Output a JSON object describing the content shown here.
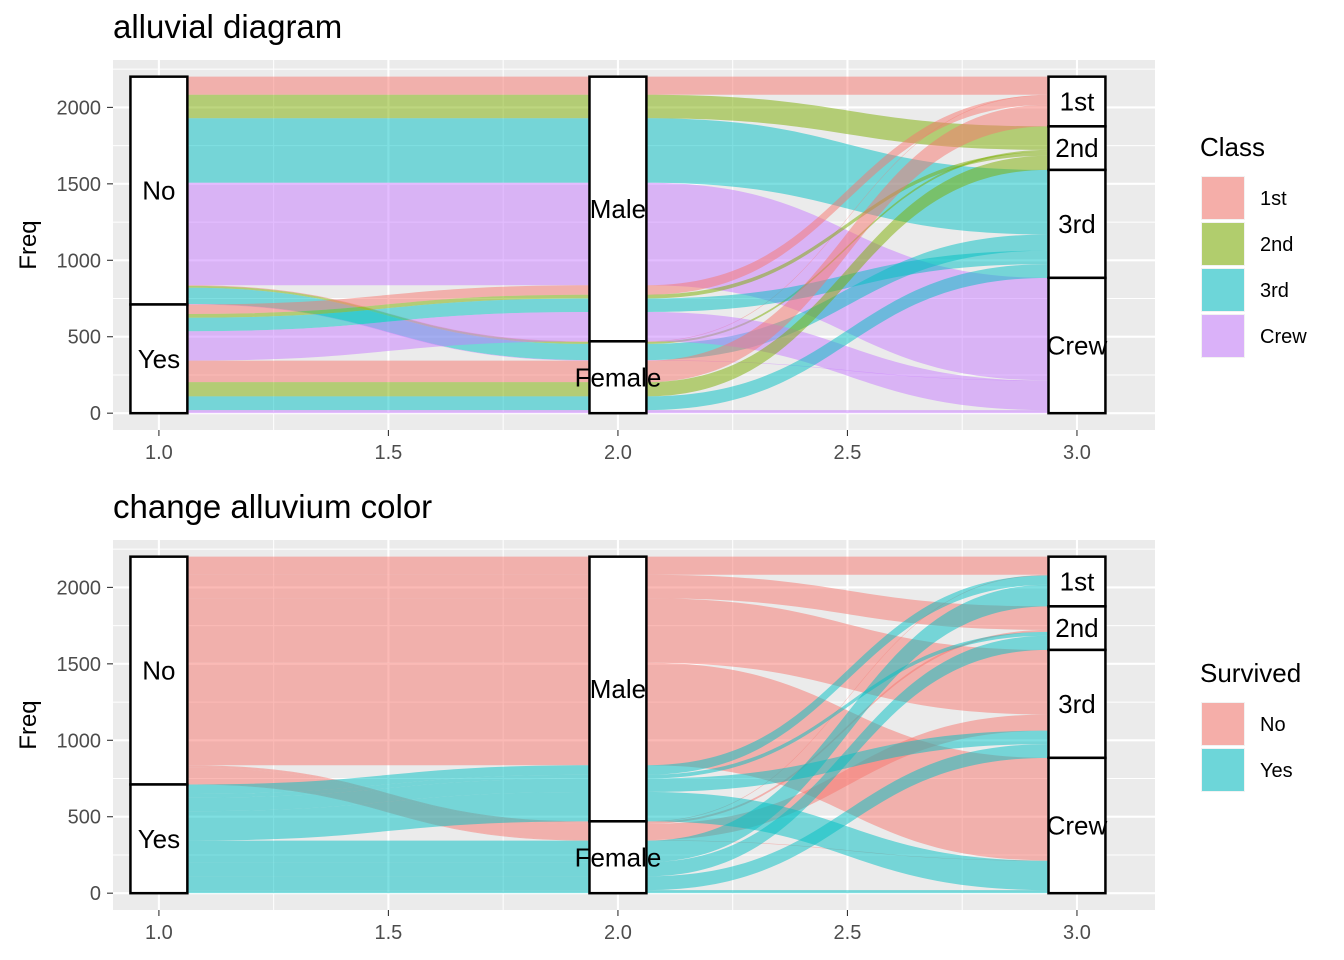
{
  "chart_data": [
    {
      "type": "alluvial",
      "title": "alluvial diagram",
      "xlabel": "",
      "ylabel": "Freq",
      "xlim": [
        0.9,
        3.17
      ],
      "ylim": [
        -110,
        2310
      ],
      "x_ticks": [
        1.0,
        1.5,
        2.0,
        2.5,
        3.0
      ],
      "x_tick_labels": [
        "1.0",
        "1.5",
        "2.0",
        "2.5",
        "3.0"
      ],
      "y_ticks": [
        0,
        500,
        1000,
        1500,
        2000
      ],
      "y_tick_labels": [
        "0",
        "500",
        "1000",
        "1500",
        "2000"
      ],
      "grid": true,
      "fill_by": "Class",
      "legend": {
        "title": "Class",
        "position": "right",
        "entries": [
          {
            "label": "1st",
            "color": "#F8766D"
          },
          {
            "label": "2nd",
            "color": "#7CAE00"
          },
          {
            "label": "3rd",
            "color": "#00BFC4"
          },
          {
            "label": "Crew",
            "color": "#C77CFF"
          }
        ]
      },
      "axes": [
        {
          "x": 1,
          "strata": [
            {
              "label": "No",
              "value": 1490
            },
            {
              "label": "Yes",
              "value": 711
            }
          ]
        },
        {
          "x": 2,
          "strata": [
            {
              "label": "Male",
              "value": 1731
            },
            {
              "label": "Female",
              "value": 470
            }
          ]
        },
        {
          "x": 3,
          "strata": [
            {
              "label": "1st",
              "value": 325
            },
            {
              "label": "2nd",
              "value": 285
            },
            {
              "label": "3rd",
              "value": 706
            },
            {
              "label": "Crew",
              "value": 885
            }
          ]
        }
      ],
      "flows": [
        {
          "survived": "No",
          "sex": "Male",
          "class": "1st",
          "freq": 118
        },
        {
          "survived": "No",
          "sex": "Male",
          "class": "2nd",
          "freq": 154
        },
        {
          "survived": "No",
          "sex": "Male",
          "class": "3rd",
          "freq": 422
        },
        {
          "survived": "No",
          "sex": "Male",
          "class": "Crew",
          "freq": 670
        },
        {
          "survived": "No",
          "sex": "Female",
          "class": "1st",
          "freq": 4
        },
        {
          "survived": "No",
          "sex": "Female",
          "class": "2nd",
          "freq": 13
        },
        {
          "survived": "No",
          "sex": "Female",
          "class": "3rd",
          "freq": 106
        },
        {
          "survived": "No",
          "sex": "Female",
          "class": "Crew",
          "freq": 3
        },
        {
          "survived": "Yes",
          "sex": "Male",
          "class": "1st",
          "freq": 62
        },
        {
          "survived": "Yes",
          "sex": "Male",
          "class": "2nd",
          "freq": 25
        },
        {
          "survived": "Yes",
          "sex": "Male",
          "class": "3rd",
          "freq": 88
        },
        {
          "survived": "Yes",
          "sex": "Male",
          "class": "Crew",
          "freq": 192
        },
        {
          "survived": "Yes",
          "sex": "Female",
          "class": "1st",
          "freq": 141
        },
        {
          "survived": "Yes",
          "sex": "Female",
          "class": "2nd",
          "freq": 93
        },
        {
          "survived": "Yes",
          "sex": "Female",
          "class": "3rd",
          "freq": 90
        },
        {
          "survived": "Yes",
          "sex": "Female",
          "class": "Crew",
          "freq": 20
        }
      ]
    },
    {
      "type": "alluvial",
      "title": "change alluvium color",
      "xlabel": "",
      "ylabel": "Freq",
      "xlim": [
        0.9,
        3.17
      ],
      "ylim": [
        -110,
        2310
      ],
      "x_ticks": [
        1.0,
        1.5,
        2.0,
        2.5,
        3.0
      ],
      "x_tick_labels": [
        "1.0",
        "1.5",
        "2.0",
        "2.5",
        "3.0"
      ],
      "y_ticks": [
        0,
        500,
        1000,
        1500,
        2000
      ],
      "y_tick_labels": [
        "0",
        "500",
        "1000",
        "1500",
        "2000"
      ],
      "grid": true,
      "fill_by": "Survived",
      "legend": {
        "title": "Survived",
        "position": "right",
        "entries": [
          {
            "label": "No",
            "color": "#F8766D"
          },
          {
            "label": "Yes",
            "color": "#00BFC4"
          }
        ]
      },
      "axes": [
        {
          "x": 1,
          "strata": [
            {
              "label": "No",
              "value": 1490
            },
            {
              "label": "Yes",
              "value": 711
            }
          ]
        },
        {
          "x": 2,
          "strata": [
            {
              "label": "Male",
              "value": 1731
            },
            {
              "label": "Female",
              "value": 470
            }
          ]
        },
        {
          "x": 3,
          "strata": [
            {
              "label": "1st",
              "value": 325
            },
            {
              "label": "2nd",
              "value": 285
            },
            {
              "label": "3rd",
              "value": 706
            },
            {
              "label": "Crew",
              "value": 885
            }
          ]
        }
      ],
      "flows": [
        {
          "survived": "No",
          "sex": "Male",
          "class": "1st",
          "freq": 118
        },
        {
          "survived": "No",
          "sex": "Male",
          "class": "2nd",
          "freq": 154
        },
        {
          "survived": "No",
          "sex": "Male",
          "class": "3rd",
          "freq": 422
        },
        {
          "survived": "No",
          "sex": "Male",
          "class": "Crew",
          "freq": 670
        },
        {
          "survived": "No",
          "sex": "Female",
          "class": "1st",
          "freq": 4
        },
        {
          "survived": "No",
          "sex": "Female",
          "class": "2nd",
          "freq": 13
        },
        {
          "survived": "No",
          "sex": "Female",
          "class": "3rd",
          "freq": 106
        },
        {
          "survived": "No",
          "sex": "Female",
          "class": "Crew",
          "freq": 3
        },
        {
          "survived": "Yes",
          "sex": "Male",
          "class": "1st",
          "freq": 62
        },
        {
          "survived": "Yes",
          "sex": "Male",
          "class": "2nd",
          "freq": 25
        },
        {
          "survived": "Yes",
          "sex": "Male",
          "class": "3rd",
          "freq": 88
        },
        {
          "survived": "Yes",
          "sex": "Male",
          "class": "Crew",
          "freq": 192
        },
        {
          "survived": "Yes",
          "sex": "Female",
          "class": "1st",
          "freq": 141
        },
        {
          "survived": "Yes",
          "sex": "Female",
          "class": "2nd",
          "freq": 93
        },
        {
          "survived": "Yes",
          "sex": "Female",
          "class": "3rd",
          "freq": 90
        },
        {
          "survived": "Yes",
          "sex": "Female",
          "class": "Crew",
          "freq": 20
        }
      ]
    }
  ]
}
